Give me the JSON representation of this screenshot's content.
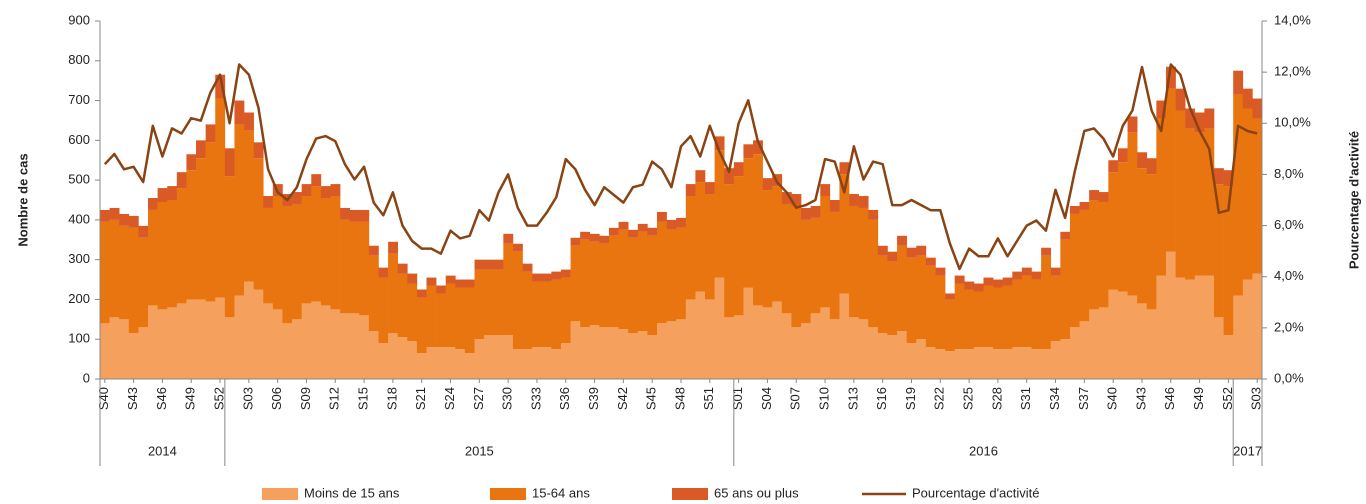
{
  "chart_data": {
    "type": "bar",
    "stacked": true,
    "y_label": "Nombre de cas",
    "y2_label": "Pourcentage d'activité",
    "categories": [
      "S40",
      null,
      null,
      "S43",
      null,
      null,
      "S46",
      null,
      null,
      "S49",
      null,
      null,
      "S52",
      null,
      null,
      "S03",
      null,
      null,
      "S06",
      null,
      null,
      "S09",
      null,
      null,
      "S12",
      null,
      null,
      "S15",
      null,
      null,
      "S18",
      null,
      null,
      "S21",
      null,
      null,
      "S24",
      null,
      null,
      "S27",
      null,
      null,
      "S30",
      null,
      null,
      "S33",
      null,
      null,
      "S36",
      null,
      null,
      "S39",
      null,
      null,
      "S42",
      null,
      null,
      "S45",
      null,
      null,
      "S48",
      null,
      null,
      "S51",
      null,
      null,
      "S01",
      null,
      null,
      "S04",
      null,
      null,
      "S07",
      null,
      null,
      "S10",
      null,
      null,
      "S13",
      null,
      null,
      "S16",
      null,
      null,
      "S19",
      null,
      null,
      "S22",
      null,
      null,
      "S25",
      null,
      null,
      "S28",
      null,
      null,
      "S31",
      null,
      null,
      "S34",
      null,
      null,
      "S37",
      null,
      null,
      "S40",
      null,
      null,
      "S43",
      null,
      null,
      "S46",
      null,
      null,
      "S49",
      null,
      null,
      "S52",
      null,
      null,
      "S03"
    ],
    "groups": [
      {
        "label": "2014",
        "count": 13
      },
      {
        "label": "2015",
        "count": 53
      },
      {
        "label": "2016",
        "count": 52
      },
      {
        "label": "2017",
        "count": 3
      }
    ],
    "series": [
      {
        "name": "Moins de 15 ans",
        "color": "#f5a05c",
        "values": [
          140,
          155,
          150,
          115,
          130,
          185,
          175,
          180,
          190,
          200,
          200,
          195,
          205,
          155,
          210,
          245,
          225,
          190,
          175,
          140,
          150,
          190,
          195,
          185,
          175,
          165,
          165,
          160,
          120,
          90,
          115,
          105,
          95,
          65,
          80,
          80,
          80,
          75,
          65,
          100,
          110,
          110,
          110,
          75,
          75,
          80,
          80,
          75,
          90,
          145,
          130,
          135,
          130,
          130,
          125,
          115,
          120,
          110,
          140,
          145,
          150,
          200,
          220,
          200,
          255,
          155,
          160,
          230,
          185,
          180,
          195,
          165,
          130,
          140,
          165,
          180,
          150,
          215,
          155,
          150,
          130,
          115,
          110,
          120,
          90,
          100,
          80,
          75,
          70,
          75,
          75,
          80,
          80,
          75,
          75,
          80,
          80,
          75,
          75,
          95,
          100,
          130,
          145,
          175,
          180,
          225,
          220,
          210,
          190,
          175,
          260,
          320,
          255,
          250,
          260,
          260,
          155,
          110,
          210,
          250,
          265
        ]
      },
      {
        "name": "15-64 ans",
        "color": "#e8750f",
        "values": [
          255,
          245,
          235,
          265,
          225,
          240,
          270,
          270,
          290,
          325,
          355,
          400,
          500,
          355,
          430,
          380,
          330,
          240,
          285,
          295,
          290,
          270,
          290,
          270,
          285,
          235,
          230,
          235,
          190,
          165,
          200,
          160,
          145,
          140,
          155,
          135,
          160,
          155,
          165,
          175,
          165,
          165,
          230,
          245,
          195,
          165,
          165,
          175,
          165,
          190,
          220,
          210,
          210,
          230,
          250,
          240,
          250,
          250,
          255,
          230,
          230,
          260,
          275,
          265,
          320,
          335,
          350,
          325,
          380,
          295,
          290,
          275,
          305,
          260,
          240,
          280,
          270,
          300,
          280,
          280,
          270,
          195,
          185,
          215,
          215,
          210,
          205,
          185,
          130,
          165,
          150,
          140,
          155,
          155,
          160,
          170,
          180,
          175,
          235,
          165,
          250,
          285,
          280,
          275,
          265,
          295,
          325,
          410,
          340,
          340,
          395,
          410,
          420,
          380,
          360,
          370,
          335,
          375,
          505,
          430,
          390
        ]
      },
      {
        "name": "65 ans ou plus",
        "color": "#da5a26",
        "values": [
          30,
          30,
          30,
          30,
          30,
          30,
          35,
          35,
          40,
          40,
          45,
          45,
          60,
          70,
          60,
          45,
          40,
          30,
          30,
          30,
          30,
          30,
          30,
          30,
          30,
          30,
          30,
          30,
          25,
          25,
          30,
          25,
          25,
          20,
          20,
          20,
          20,
          20,
          20,
          25,
          25,
          25,
          25,
          20,
          20,
          20,
          20,
          20,
          20,
          20,
          20,
          20,
          20,
          20,
          20,
          20,
          20,
          20,
          25,
          25,
          25,
          30,
          30,
          30,
          35,
          40,
          35,
          35,
          35,
          30,
          30,
          30,
          30,
          30,
          30,
          30,
          30,
          30,
          30,
          30,
          25,
          25,
          25,
          25,
          25,
          25,
          20,
          20,
          15,
          20,
          20,
          20,
          20,
          20,
          20,
          20,
          20,
          20,
          20,
          20,
          20,
          20,
          20,
          25,
          25,
          30,
          35,
          40,
          40,
          40,
          45,
          55,
          55,
          50,
          50,
          50,
          40,
          40,
          60,
          50,
          50
        ]
      },
      {
        "name": "Pourcentage d'activité",
        "color": "#8a4312",
        "type": "line",
        "axis": "y2",
        "values": [
          8.4,
          8.8,
          8.2,
          8.3,
          7.7,
          9.9,
          8.7,
          9.8,
          9.6,
          10.2,
          10.1,
          11.2,
          11.9,
          10.0,
          12.3,
          11.9,
          10.6,
          8.2,
          7.3,
          7.0,
          7.5,
          8.6,
          9.4,
          9.5,
          9.3,
          8.4,
          7.8,
          8.3,
          6.9,
          6.4,
          7.3,
          6.0,
          5.4,
          5.1,
          5.1,
          4.9,
          5.8,
          5.5,
          5.6,
          6.6,
          6.2,
          7.3,
          8.0,
          6.7,
          6.0,
          6.0,
          6.5,
          7.1,
          8.6,
          8.2,
          7.4,
          6.8,
          7.5,
          7.2,
          6.9,
          7.5,
          7.6,
          8.5,
          8.2,
          7.5,
          9.1,
          9.5,
          8.7,
          9.9,
          8.9,
          8.1,
          10.0,
          10.9,
          9.3,
          8.5,
          7.7,
          7.3,
          6.7,
          6.8,
          7.0,
          8.6,
          8.5,
          7.3,
          9.1,
          7.8,
          8.5,
          8.4,
          6.8,
          6.8,
          7.0,
          6.8,
          6.6,
          6.6,
          5.3,
          4.3,
          5.1,
          4.8,
          4.8,
          5.5,
          4.8,
          5.4,
          6.0,
          6.2,
          5.8,
          7.4,
          6.3,
          8.1,
          9.7,
          9.8,
          9.4,
          8.7,
          9.9,
          10.5,
          12.2,
          10.5,
          9.7,
          12.3,
          11.9,
          10.6,
          9.7,
          9.0,
          6.5,
          6.6,
          9.9,
          9.7,
          9.6
        ]
      }
    ],
    "ylim": [
      0,
      900
    ],
    "yticks": [
      0,
      100,
      200,
      300,
      400,
      500,
      600,
      700,
      800,
      900
    ],
    "y2lim": [
      0,
      14
    ],
    "y2ticks": [
      {
        "value": 0,
        "label": "0,0%"
      },
      {
        "value": 2,
        "label": "2,0%"
      },
      {
        "value": 4,
        "label": "4,0%"
      },
      {
        "value": 6,
        "label": "6,0%"
      },
      {
        "value": 8,
        "label": "8,0%"
      },
      {
        "value": 10,
        "label": "10,0%"
      },
      {
        "value": 12,
        "label": "12,0%"
      },
      {
        "value": 14,
        "label": "14,0%"
      }
    ],
    "legend": "bottom"
  }
}
